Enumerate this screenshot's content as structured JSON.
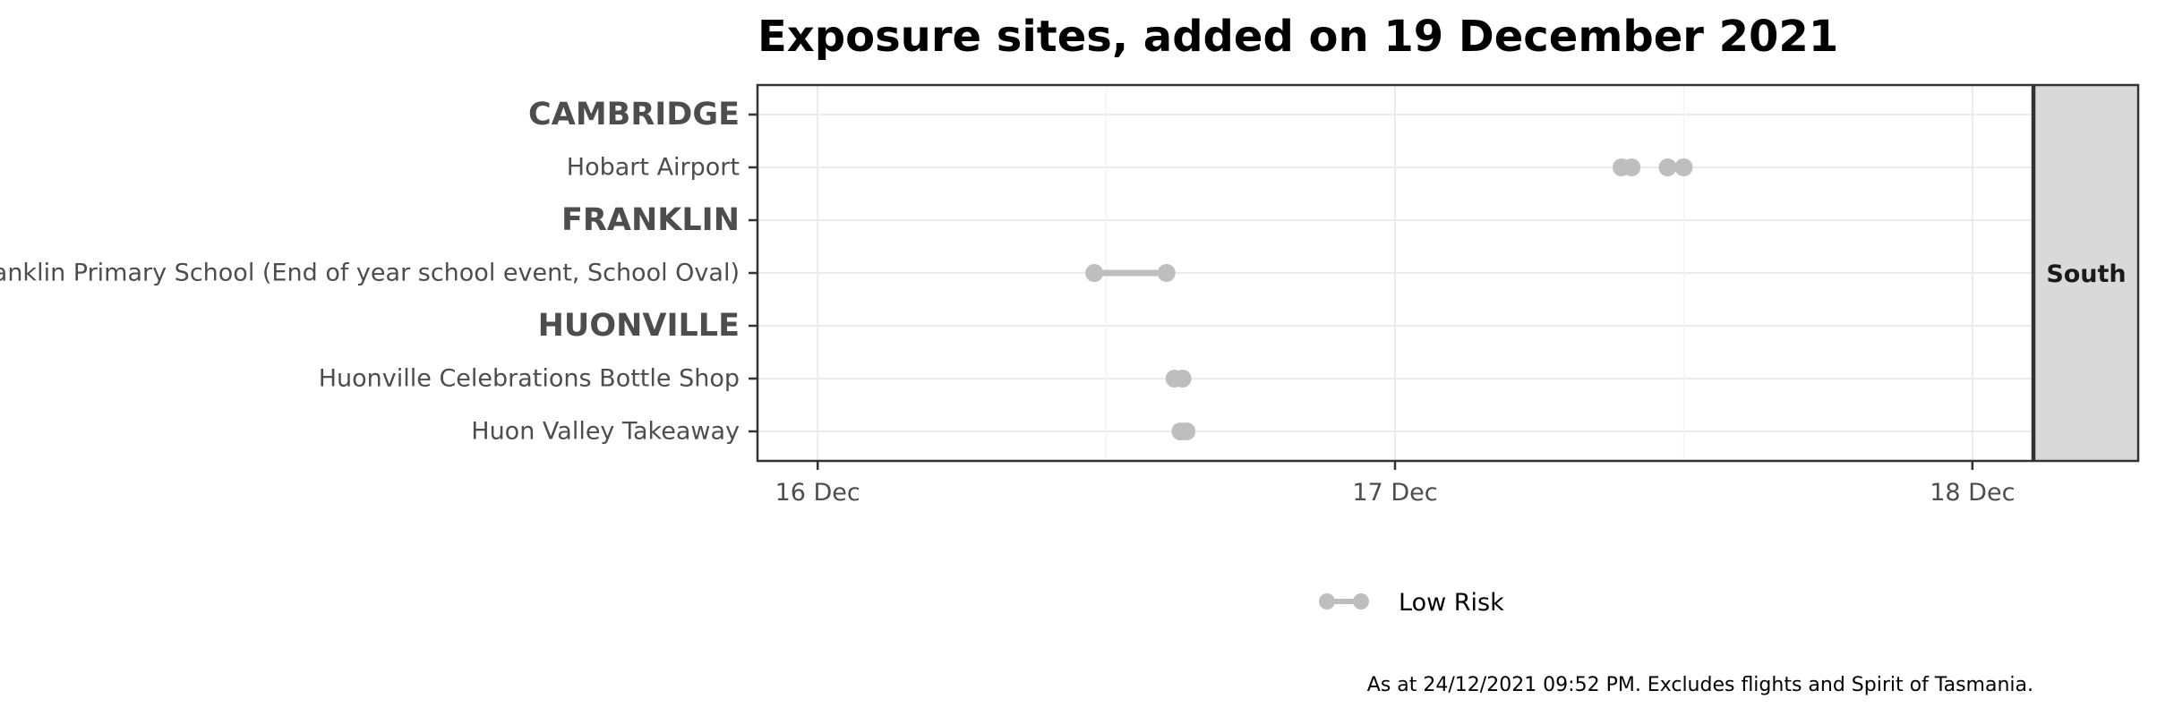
{
  "chart_data": {
    "type": "dumbbell",
    "title": "Exposure sites, added on 19 December 2021",
    "caption": "As at 24/12/2021 09:52 PM. Excludes flights and Spirit of Tasmania.",
    "facet": "South",
    "x_ticks": [
      "16 Dec",
      "17 Dec",
      "18 Dec"
    ],
    "x_range": [
      "2021-12-15 21:30",
      "2021-12-18 02:30"
    ],
    "rows": [
      {
        "label": "CAMBRIDGE",
        "is_group": true
      },
      {
        "label": "Hobart Airport",
        "is_group": false
      },
      {
        "label": "FRANKLIN",
        "is_group": true
      },
      {
        "label": "Franklin Primary School (End of year school event, School Oval)",
        "is_group": false
      },
      {
        "label": "HUONVILLE",
        "is_group": true
      },
      {
        "label": "Huonville Celebrations Bottle Shop",
        "is_group": false
      },
      {
        "label": "Huon Valley Takeaway",
        "is_group": false
      }
    ],
    "segments": [
      {
        "site": "Hobart Airport",
        "start": "2021-12-17 09:25",
        "end": "2021-12-17 09:50",
        "risk": "Low Risk"
      },
      {
        "site": "Hobart Airport",
        "start": "2021-12-17 11:20",
        "end": "2021-12-17 12:00",
        "risk": "Low Risk"
      },
      {
        "site": "Franklin Primary School (End of year school event, School Oval)",
        "start": "2021-12-16 11:30",
        "end": "2021-12-16 14:30",
        "risk": "Low Risk"
      },
      {
        "site": "Huonville Celebrations Bottle Shop",
        "start": "2021-12-16 14:50",
        "end": "2021-12-16 15:10",
        "risk": "Low Risk"
      },
      {
        "site": "Huon Valley Takeaway",
        "start": "2021-12-16 15:05",
        "end": "2021-12-16 15:20",
        "risk": "Low Risk"
      }
    ],
    "legend": [
      {
        "label": "Low Risk",
        "color": "#bebebe"
      }
    ],
    "legend_position": "bottom",
    "grid": true
  }
}
